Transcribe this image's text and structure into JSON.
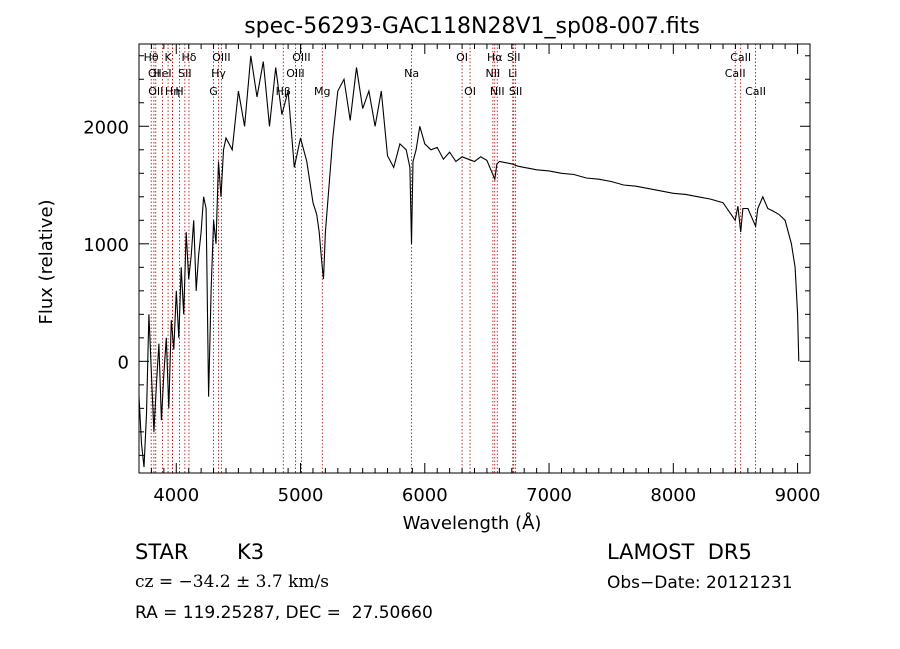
{
  "chart_data": {
    "type": "line",
    "title": "spec-56293-GAC118N28V1_sp08-007.fits",
    "xlabel": "Wavelength (Å)",
    "ylabel": "Flux (relative)",
    "xlim": [
      3700,
      9100
    ],
    "ylim": [
      -950,
      2700
    ],
    "xticks": [
      4000,
      5000,
      6000,
      7000,
      8000,
      9000
    ],
    "yticks": [
      0,
      1000,
      2000
    ],
    "grid": false,
    "line_color": "#000000",
    "marker_color": "#b00000",
    "series": [
      {
        "points": [
          [
            3700,
            -300
          ],
          [
            3720,
            -700
          ],
          [
            3740,
            -900
          ],
          [
            3760,
            -450
          ],
          [
            3780,
            400
          ],
          [
            3800,
            -100
          ],
          [
            3820,
            -600
          ],
          [
            3840,
            -200
          ],
          [
            3860,
            150
          ],
          [
            3880,
            -500
          ],
          [
            3900,
            -100
          ],
          [
            3920,
            200
          ],
          [
            3940,
            -400
          ],
          [
            3960,
            350
          ],
          [
            3980,
            100
          ],
          [
            4000,
            600
          ],
          [
            4020,
            200
          ],
          [
            4040,
            800
          ],
          [
            4060,
            400
          ],
          [
            4080,
            1100
          ],
          [
            4100,
            700
          ],
          [
            4120,
            900
          ],
          [
            4140,
            1200
          ],
          [
            4160,
            600
          ],
          [
            4180,
            900
          ],
          [
            4200,
            1100
          ],
          [
            4220,
            1400
          ],
          [
            4240,
            1300
          ],
          [
            4260,
            -300
          ],
          [
            4280,
            600
          ],
          [
            4300,
            1200
          ],
          [
            4320,
            1000
          ],
          [
            4340,
            1700
          ],
          [
            4360,
            1400
          ],
          [
            4380,
            1800
          ],
          [
            4400,
            1900
          ],
          [
            4450,
            1800
          ],
          [
            4500,
            2300
          ],
          [
            4550,
            2000
          ],
          [
            4600,
            2600
          ],
          [
            4650,
            2250
          ],
          [
            4700,
            2550
          ],
          [
            4750,
            2000
          ],
          [
            4800,
            2500
          ],
          [
            4850,
            2100
          ],
          [
            4900,
            2300
          ],
          [
            4950,
            1650
          ],
          [
            5000,
            1900
          ],
          [
            5050,
            1700
          ],
          [
            5100,
            1350
          ],
          [
            5130,
            1250
          ],
          [
            5150,
            1100
          ],
          [
            5170,
            850
          ],
          [
            5185,
            700
          ],
          [
            5200,
            1100
          ],
          [
            5230,
            1500
          ],
          [
            5260,
            1900
          ],
          [
            5300,
            2300
          ],
          [
            5350,
            2400
          ],
          [
            5400,
            2050
          ],
          [
            5450,
            2500
          ],
          [
            5500,
            2150
          ],
          [
            5550,
            2300
          ],
          [
            5600,
            2000
          ],
          [
            5650,
            2300
          ],
          [
            5700,
            1750
          ],
          [
            5750,
            1650
          ],
          [
            5800,
            1850
          ],
          [
            5850,
            1800
          ],
          [
            5880,
            1650
          ],
          [
            5893,
            1000
          ],
          [
            5905,
            1700
          ],
          [
            5930,
            1800
          ],
          [
            5960,
            2000
          ],
          [
            6000,
            1850
          ],
          [
            6050,
            1800
          ],
          [
            6100,
            1820
          ],
          [
            6150,
            1720
          ],
          [
            6200,
            1780
          ],
          [
            6250,
            1700
          ],
          [
            6300,
            1740
          ],
          [
            6350,
            1720
          ],
          [
            6400,
            1700
          ],
          [
            6450,
            1740
          ],
          [
            6500,
            1710
          ],
          [
            6563,
            1550
          ],
          [
            6580,
            1680
          ],
          [
            6600,
            1700
          ],
          [
            6650,
            1690
          ],
          [
            6700,
            1680
          ],
          [
            6750,
            1660
          ],
          [
            6800,
            1650
          ],
          [
            6850,
            1640
          ],
          [
            6900,
            1630
          ],
          [
            7000,
            1620
          ],
          [
            7100,
            1600
          ],
          [
            7200,
            1590
          ],
          [
            7300,
            1560
          ],
          [
            7400,
            1550
          ],
          [
            7500,
            1530
          ],
          [
            7600,
            1500
          ],
          [
            7700,
            1490
          ],
          [
            7800,
            1470
          ],
          [
            7900,
            1450
          ],
          [
            8000,
            1430
          ],
          [
            8100,
            1420
          ],
          [
            8200,
            1400
          ],
          [
            8300,
            1380
          ],
          [
            8400,
            1350
          ],
          [
            8498,
            1200
          ],
          [
            8520,
            1320
          ],
          [
            8542,
            1100
          ],
          [
            8560,
            1300
          ],
          [
            8600,
            1300
          ],
          [
            8662,
            1150
          ],
          [
            8680,
            1300
          ],
          [
            8720,
            1400
          ],
          [
            8760,
            1300
          ],
          [
            8800,
            1280
          ],
          [
            8850,
            1250
          ],
          [
            8900,
            1200
          ],
          [
            8950,
            1000
          ],
          [
            8980,
            800
          ],
          [
            9000,
            400
          ],
          [
            9010,
            0
          ]
        ]
      }
    ],
    "line_markers": [
      {
        "wl": 3798,
        "label": "Hθ",
        "row": 1
      },
      {
        "wl": 3820,
        "label": "OI",
        "row": 2
      },
      {
        "wl": 3835,
        "label": "OII",
        "row": 3
      },
      {
        "wl": 3889,
        "label": "HeI",
        "row": 2
      },
      {
        "wl": 3934,
        "label": "K",
        "row": 1
      },
      {
        "wl": 3970,
        "label": "Hη",
        "row": 3
      },
      {
        "wl": 3969,
        "label": "",
        "row": 0
      },
      {
        "wl": 4026,
        "label": "H",
        "row": 3
      },
      {
        "wl": 4069,
        "label": "SII",
        "row": 2
      },
      {
        "wl": 4102,
        "label": "Hδ",
        "row": 1
      },
      {
        "wl": 4300,
        "label": "G",
        "row": 3
      },
      {
        "wl": 4340,
        "label": "Hγ",
        "row": 2
      },
      {
        "wl": 4363,
        "label": "OIII",
        "row": 1
      },
      {
        "wl": 4861,
        "label": "Hβ",
        "row": 3
      },
      {
        "wl": 4959,
        "label": "OIII",
        "row": 2
      },
      {
        "wl": 5007,
        "label": "OIII",
        "row": 1
      },
      {
        "wl": 5175,
        "label": "Mg",
        "row": 3
      },
      {
        "wl": 5894,
        "label": "Na",
        "row": 2
      },
      {
        "wl": 6300,
        "label": "OI",
        "row": 1
      },
      {
        "wl": 6364,
        "label": "OI",
        "row": 3
      },
      {
        "wl": 6548,
        "label": "NII",
        "row": 2
      },
      {
        "wl": 6563,
        "label": "Hα",
        "row": 1
      },
      {
        "wl": 6583,
        "label": "NII",
        "row": 3
      },
      {
        "wl": 6708,
        "label": "Li",
        "row": 2
      },
      {
        "wl": 6716,
        "label": "SII",
        "row": 1
      },
      {
        "wl": 6731,
        "label": "SII",
        "row": 3
      },
      {
        "wl": 8498,
        "label": "CaII",
        "row": 2
      },
      {
        "wl": 8542,
        "label": "CaII",
        "row": 1
      },
      {
        "wl": 8662,
        "label": "CaII",
        "row": 3
      }
    ]
  },
  "info": {
    "object_type": "STAR",
    "subclass": "K3",
    "survey": "LAMOST  DR5",
    "cz": "cz = −34.2 ± 3.7 km/s",
    "obs_date": "Obs−Date: 20121231",
    "coords": "RA = 119.25287, DEC =  27.50660"
  }
}
